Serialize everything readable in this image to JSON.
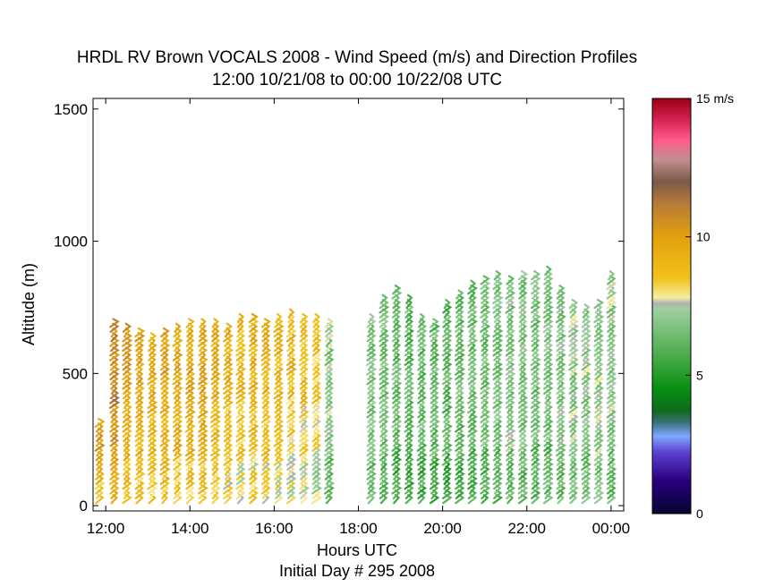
{
  "chart_data": {
    "type": "scatter",
    "title": "HRDL RV Brown VOCALS 2008 - Wind Speed (m/s) and Direction Profiles",
    "subtitle": "12:00 10/21/08 to 00:00 10/22/08  UTC",
    "xlabel": "Hours UTC",
    "xlabel2": "Initial Day # 295  2008",
    "ylabel": "Altitude (m)",
    "xlim": [
      11.7,
      24.3
    ],
    "ylim": [
      -20,
      1540
    ],
    "x_ticks": [
      12,
      14,
      16,
      18,
      20,
      22,
      24
    ],
    "x_tick_labels": [
      "12:00",
      "14:00",
      "16:00",
      "18:00",
      "20:00",
      "22:00",
      "00:00"
    ],
    "y_ticks": [
      0,
      500,
      1000,
      1500
    ],
    "y_tick_labels": [
      "0",
      "500",
      "1000",
      "1500"
    ],
    "grid": false,
    "colorbar": {
      "range": [
        0,
        15
      ],
      "ticks": [
        0,
        5,
        10,
        15
      ],
      "tick_labels": [
        "0",
        "5",
        "10",
        "15 m/s"
      ],
      "stops": [
        {
          "v": 0,
          "color": "#050530"
        },
        {
          "v": 1.2,
          "color": "#2a007f"
        },
        {
          "v": 2.2,
          "color": "#5a3fd0"
        },
        {
          "v": 2.8,
          "color": "#7fa7ff"
        },
        {
          "v": 3.3,
          "color": "#3a6f78"
        },
        {
          "v": 3.7,
          "color": "#0f6b1f"
        },
        {
          "v": 4.5,
          "color": "#078f12"
        },
        {
          "v": 5.8,
          "color": "#4fae4f"
        },
        {
          "v": 7.4,
          "color": "#9fd0a0"
        },
        {
          "v": 7.6,
          "color": "#b0b0b0"
        },
        {
          "v": 7.8,
          "color": "#f7eca0"
        },
        {
          "v": 8.5,
          "color": "#f0c31a"
        },
        {
          "v": 10.0,
          "color": "#e3a00e"
        },
        {
          "v": 11.2,
          "color": "#b77a3a"
        },
        {
          "v": 12.0,
          "color": "#7a5a48"
        },
        {
          "v": 12.8,
          "color": "#c29090"
        },
        {
          "v": 13.5,
          "color": "#ff5a8a"
        },
        {
          "v": 14.3,
          "color": "#d01e4e"
        },
        {
          "v": 15.0,
          "color": "#9a0010"
        }
      ]
    },
    "series": [
      {
        "x": 11.85,
        "top": 310,
        "speed": 9.5
      },
      {
        "x": 12.2,
        "top": 690,
        "speed": 10.3
      },
      {
        "x": 12.5,
        "top": 670,
        "speed": 9.6
      },
      {
        "x": 12.8,
        "top": 650,
        "speed": 9.3
      },
      {
        "x": 13.1,
        "top": 640,
        "speed": 9.1
      },
      {
        "x": 13.4,
        "top": 650,
        "speed": 9.4
      },
      {
        "x": 13.7,
        "top": 680,
        "speed": 9.3
      },
      {
        "x": 14.0,
        "top": 690,
        "speed": 9.2
      },
      {
        "x": 14.3,
        "top": 700,
        "speed": 9.4
      },
      {
        "x": 14.6,
        "top": 690,
        "speed": 9.0
      },
      {
        "x": 14.9,
        "top": 680,
        "speed": 8.9
      },
      {
        "x": 15.2,
        "top": 710,
        "speed": 8.6
      },
      {
        "x": 15.5,
        "top": 720,
        "speed": 8.8
      },
      {
        "x": 15.8,
        "top": 700,
        "speed": 8.7
      },
      {
        "x": 16.1,
        "top": 710,
        "speed": 8.6
      },
      {
        "x": 16.4,
        "top": 730,
        "speed": 8.5
      },
      {
        "x": 16.7,
        "top": 720,
        "speed": 8.3
      },
      {
        "x": 17.0,
        "top": 710,
        "speed": 8.0
      },
      {
        "x": 17.3,
        "top": 700,
        "speed": 7.0
      },
      {
        "x": 18.3,
        "top": 720,
        "speed": 6.8
      },
      {
        "x": 18.6,
        "top": 780,
        "speed": 6.6
      },
      {
        "x": 18.9,
        "top": 820,
        "speed": 6.3
      },
      {
        "x": 19.2,
        "top": 780,
        "speed": 6.2
      },
      {
        "x": 19.5,
        "top": 720,
        "speed": 6.3
      },
      {
        "x": 19.8,
        "top": 700,
        "speed": 6.2
      },
      {
        "x": 20.1,
        "top": 760,
        "speed": 6.1
      },
      {
        "x": 20.4,
        "top": 800,
        "speed": 6.3
      },
      {
        "x": 20.7,
        "top": 830,
        "speed": 6.4
      },
      {
        "x": 21.0,
        "top": 850,
        "speed": 6.5
      },
      {
        "x": 21.3,
        "top": 880,
        "speed": 6.7
      },
      {
        "x": 21.6,
        "top": 860,
        "speed": 6.9
      },
      {
        "x": 21.9,
        "top": 870,
        "speed": 6.8
      },
      {
        "x": 22.2,
        "top": 880,
        "speed": 6.6
      },
      {
        "x": 22.5,
        "top": 890,
        "speed": 6.7
      },
      {
        "x": 22.8,
        "top": 820,
        "speed": 6.9
      },
      {
        "x": 23.1,
        "top": 760,
        "speed": 7.0
      },
      {
        "x": 23.4,
        "top": 740,
        "speed": 7.1
      },
      {
        "x": 23.7,
        "top": 760,
        "speed": 7.2
      },
      {
        "x": 24.0,
        "top": 880,
        "speed": 7.0
      }
    ]
  }
}
